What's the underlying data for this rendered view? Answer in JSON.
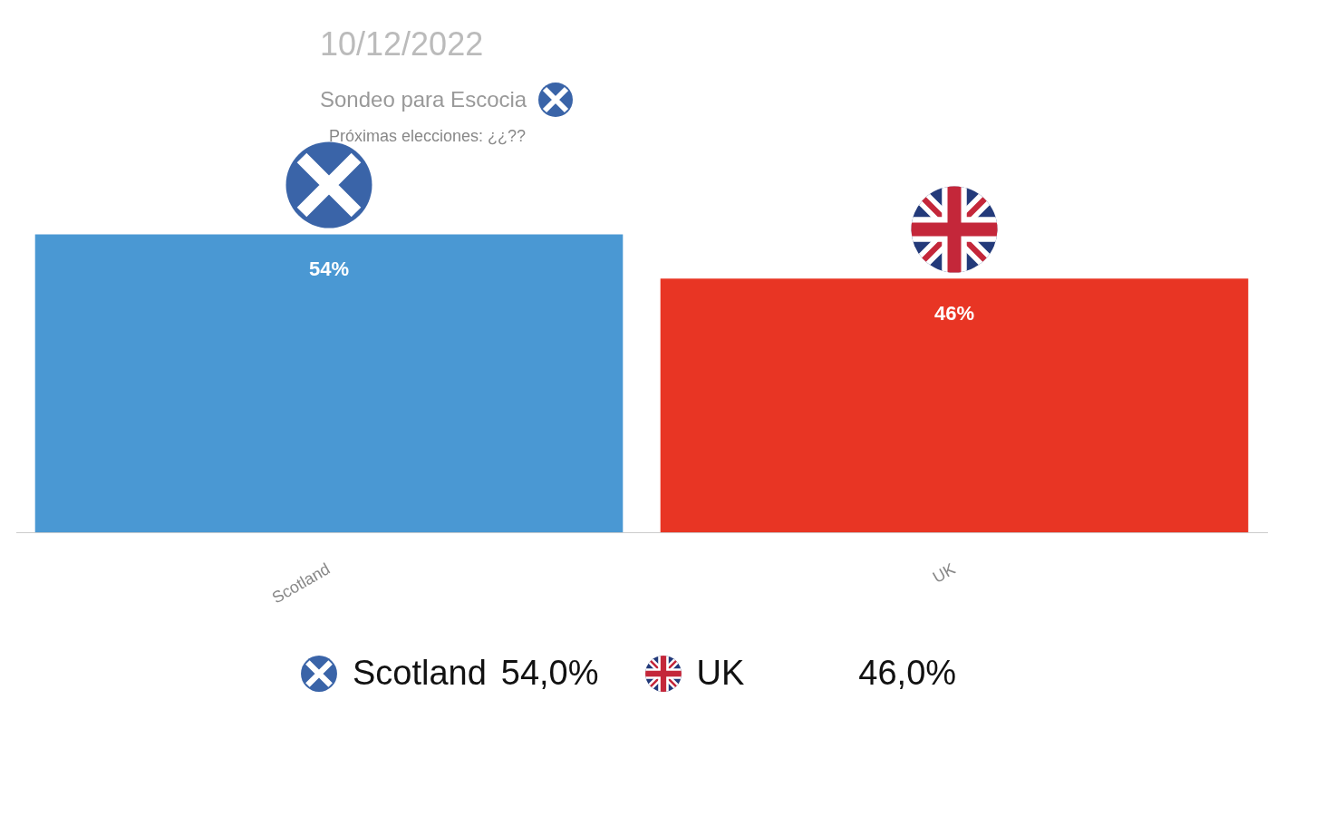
{
  "chart_data": {
    "type": "bar",
    "title": "10/12/2022",
    "subtitle": "Sondeo para Escocia",
    "categories": [
      "Scotland",
      "UK"
    ],
    "values": [
      54,
      46
    ],
    "colors": [
      "#4a98d3",
      "#e83524"
    ],
    "value_labels": [
      "54%",
      "46%"
    ],
    "grid": false,
    "annotations": [
      "Próximas elecciones: ¿¿??",
      "54,0%",
      "46,0%"
    ]
  }
}
